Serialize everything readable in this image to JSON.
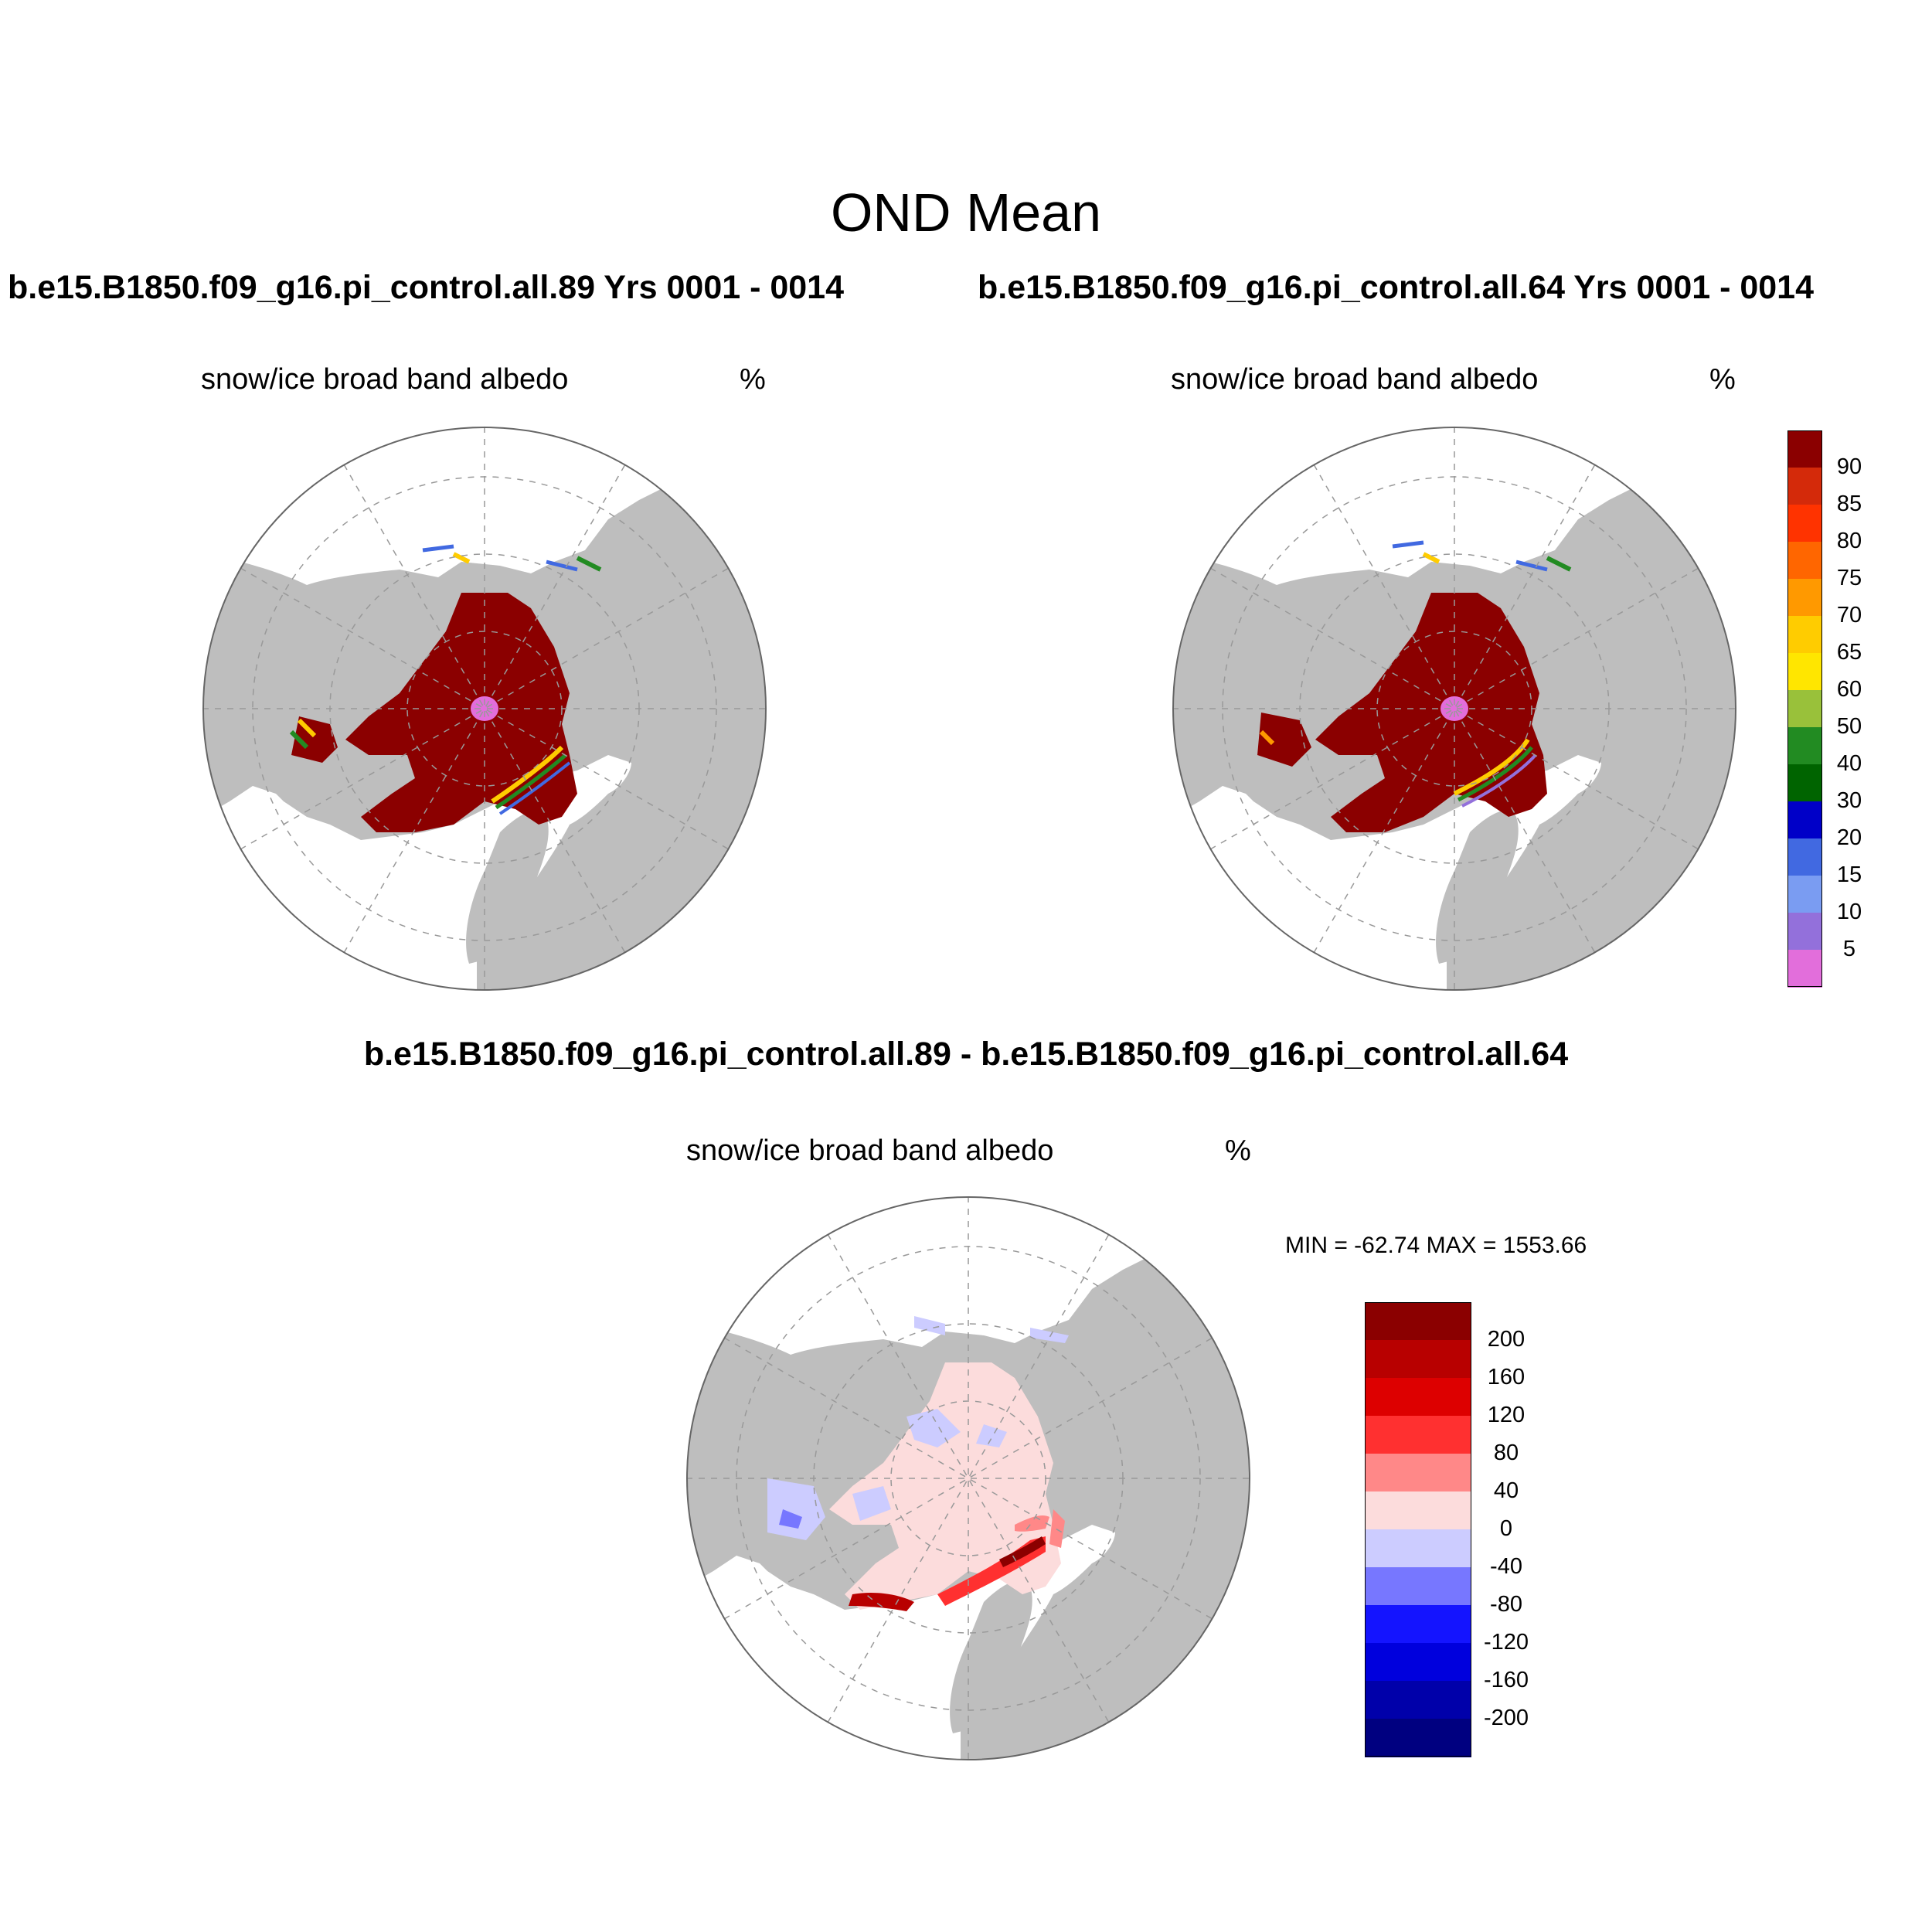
{
  "figure": {
    "title": "OND Mean",
    "left_panel": {
      "run_title": "b.e15.B1850.f09_g16.pi_control.all.89  Yrs 0001 - 0014",
      "variable": "snow/ice broad band albedo",
      "units": "%"
    },
    "right_panel": {
      "run_title": "b.e15.B1850.f09_g16.pi_control.all.64  Yrs 0001 - 0014",
      "variable": "snow/ice broad band albedo",
      "units": "%"
    },
    "diff_panel": {
      "title": "b.e15.B1850.f09_g16.pi_control.all.89 - b.e15.B1850.f09_g16.pi_control.all.64",
      "variable": "snow/ice broad band albedo",
      "units": "%",
      "minmax": "MIN = -62.74 MAX = 1553.66"
    }
  },
  "colors": {
    "land": "#bebebe",
    "ocean": "#ffffff",
    "grid": "#999999"
  },
  "chart_data": [
    {
      "type": "heatmap",
      "projection": "north-polar-stereographic",
      "title": "snow/ice broad band albedo",
      "units": "%",
      "colorbar": {
        "labels": [
          "90",
          "85",
          "80",
          "75",
          "70",
          "65",
          "60",
          "50",
          "40",
          "30",
          "20",
          "15",
          "10",
          "5"
        ],
        "colors": [
          "#8b0000",
          "#d42a0a",
          "#ff3300",
          "#ff6600",
          "#ff9900",
          "#ffcc00",
          "#ffe600",
          "#99c13a",
          "#228b22",
          "#006400",
          "#0000c8",
          "#4169e1",
          "#7a9cf2",
          "#9370db",
          "#e26edb"
        ]
      }
    },
    {
      "type": "heatmap",
      "projection": "north-polar-stereographic",
      "title": "snow/ice broad band albedo (difference)",
      "units": "%",
      "min": -62.74,
      "max": 1553.66,
      "colorbar": {
        "labels": [
          "200",
          "160",
          "120",
          "80",
          "40",
          "0",
          "-40",
          "-80",
          "-120",
          "-160",
          "-200"
        ],
        "colors": [
          "#8b0000",
          "#b80000",
          "#dd0000",
          "#ff3030",
          "#ff8888",
          "#fcdcdc",
          "#ccccff",
          "#7777ff",
          "#1414ff",
          "#0000dd",
          "#0000aa",
          "#000080"
        ]
      }
    }
  ]
}
